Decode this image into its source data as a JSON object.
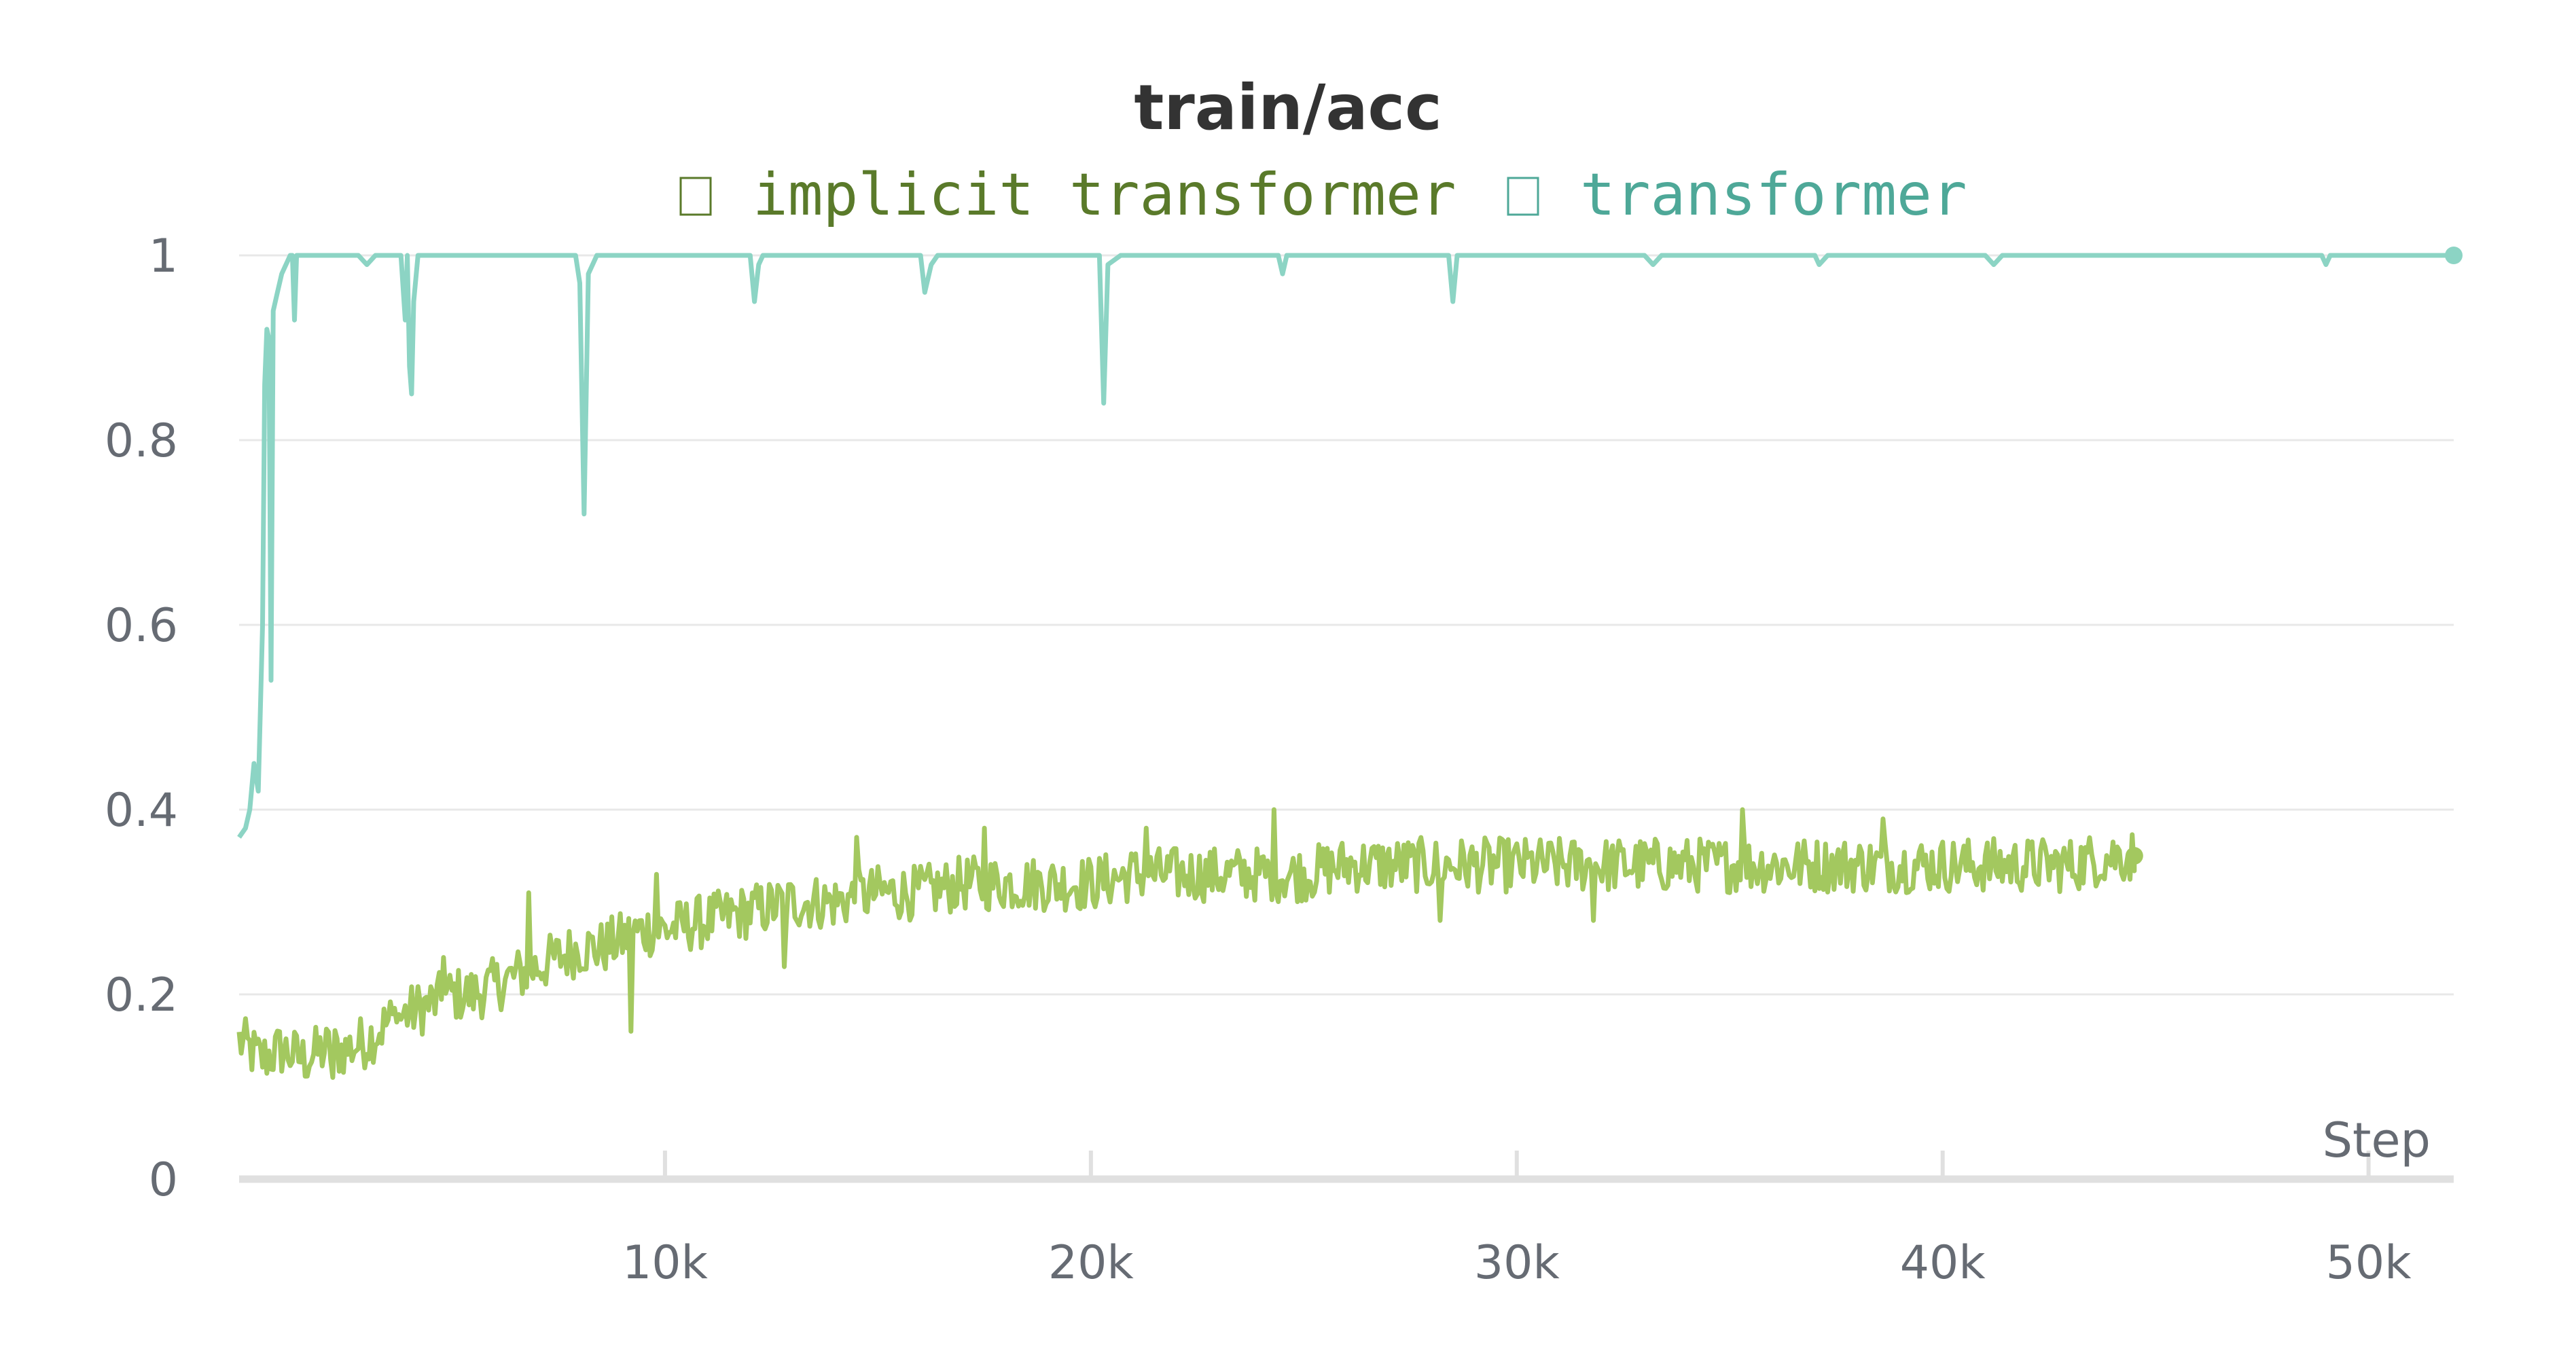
{
  "chart_data": {
    "type": "line",
    "title": "train/acc",
    "xlabel": "Step",
    "ylabel": "",
    "xlim": [
      0,
      52000
    ],
    "ylim": [
      0,
      1
    ],
    "x_ticks": [
      10000,
      20000,
      30000,
      40000,
      50000
    ],
    "x_tick_labels": [
      "10k",
      "20k",
      "30k",
      "40k",
      "50k"
    ],
    "y_ticks": [
      0,
      0.2,
      0.4,
      0.6,
      0.8,
      1
    ],
    "y_tick_labels": [
      "0",
      "0.2",
      "0.4",
      "0.6",
      "0.8",
      "1"
    ],
    "grid": true,
    "legend_position": "top-center",
    "series": [
      {
        "name": "implicit transformer",
        "color": "#a3c85f",
        "legend_color": "#5a7a2a",
        "points": [
          [
            0,
            0.15
          ],
          [
            500,
            0.13
          ],
          [
            1000,
            0.14
          ],
          [
            1500,
            0.13
          ],
          [
            2000,
            0.14
          ],
          [
            2500,
            0.14
          ],
          [
            3000,
            0.15
          ],
          [
            3500,
            0.17
          ],
          [
            4000,
            0.18
          ],
          [
            4500,
            0.19
          ],
          [
            5000,
            0.2
          ],
          [
            5500,
            0.2
          ],
          [
            6000,
            0.21
          ],
          [
            6500,
            0.22
          ],
          [
            7000,
            0.23
          ],
          [
            7500,
            0.24
          ],
          [
            8000,
            0.25
          ],
          [
            8500,
            0.25
          ],
          [
            9000,
            0.26
          ],
          [
            9500,
            0.27
          ],
          [
            10000,
            0.27
          ],
          [
            11000,
            0.28
          ],
          [
            12000,
            0.29
          ],
          [
            13000,
            0.3
          ],
          [
            14000,
            0.3
          ],
          [
            15000,
            0.31
          ],
          [
            16000,
            0.31
          ],
          [
            17000,
            0.32
          ],
          [
            18000,
            0.32
          ],
          [
            19000,
            0.32
          ],
          [
            20000,
            0.32
          ],
          [
            21000,
            0.33
          ],
          [
            22000,
            0.33
          ],
          [
            23000,
            0.33
          ],
          [
            24000,
            0.33
          ],
          [
            25000,
            0.33
          ],
          [
            26000,
            0.34
          ],
          [
            27000,
            0.34
          ],
          [
            28000,
            0.34
          ],
          [
            29000,
            0.34
          ],
          [
            30000,
            0.34
          ],
          [
            31000,
            0.34
          ],
          [
            32000,
            0.34
          ],
          [
            33000,
            0.34
          ],
          [
            34000,
            0.34
          ],
          [
            35000,
            0.34
          ],
          [
            36000,
            0.34
          ],
          [
            37000,
            0.34
          ],
          [
            38000,
            0.34
          ],
          [
            39000,
            0.34
          ],
          [
            40000,
            0.34
          ],
          [
            41000,
            0.34
          ],
          [
            42000,
            0.34
          ],
          [
            43000,
            0.34
          ],
          [
            44000,
            0.35
          ],
          [
            44500,
            0.35
          ]
        ],
        "noise_amplitude": 0.03,
        "dips": [
          [
            2200,
            0.11
          ],
          [
            3700,
            0.17
          ],
          [
            4800,
            0.24
          ],
          [
            6800,
            0.31
          ],
          [
            9200,
            0.16
          ],
          [
            9800,
            0.33
          ],
          [
            12800,
            0.23
          ],
          [
            14500,
            0.37
          ],
          [
            17500,
            0.38
          ],
          [
            21300,
            0.38
          ],
          [
            24300,
            0.4
          ],
          [
            28200,
            0.28
          ],
          [
            31800,
            0.28
          ],
          [
            35300,
            0.4
          ],
          [
            38600,
            0.39
          ]
        ],
        "endpoint": [
          44500,
          0.35
        ]
      },
      {
        "name": "transformer",
        "color": "#8cd4c4",
        "legend_color": "#4ea898",
        "points": [
          [
            0,
            0.37
          ],
          [
            150,
            0.38
          ],
          [
            250,
            0.4
          ],
          [
            350,
            0.45
          ],
          [
            450,
            0.42
          ],
          [
            550,
            0.6
          ],
          [
            600,
            0.86
          ],
          [
            650,
            0.92
          ],
          [
            700,
            0.91
          ],
          [
            750,
            0.54
          ],
          [
            800,
            0.94
          ],
          [
            900,
            0.96
          ],
          [
            1000,
            0.98
          ],
          [
            1200,
            1.0
          ],
          [
            1250,
            1.0
          ],
          [
            1300,
            0.93
          ],
          [
            1350,
            1.0
          ],
          [
            2000,
            1.0
          ],
          [
            2800,
            1.0
          ],
          [
            3000,
            0.99
          ],
          [
            3200,
            1.0
          ],
          [
            3800,
            1.0
          ],
          [
            3900,
            0.93
          ],
          [
            3950,
            1.0
          ],
          [
            4000,
            0.88
          ],
          [
            4050,
            0.85
          ],
          [
            4100,
            0.95
          ],
          [
            4200,
            1.0
          ],
          [
            7900,
            1.0
          ],
          [
            8000,
            0.97
          ],
          [
            8100,
            0.72
          ],
          [
            8200,
            0.98
          ],
          [
            8400,
            1.0
          ],
          [
            12000,
            1.0
          ],
          [
            12100,
            0.95
          ],
          [
            12200,
            0.99
          ],
          [
            12300,
            1.0
          ],
          [
            16000,
            1.0
          ],
          [
            16100,
            0.96
          ],
          [
            16250,
            0.99
          ],
          [
            16400,
            1.0
          ],
          [
            20200,
            1.0
          ],
          [
            20300,
            0.84
          ],
          [
            20400,
            0.99
          ],
          [
            20700,
            1.0
          ],
          [
            24400,
            1.0
          ],
          [
            24500,
            0.98
          ],
          [
            24600,
            1.0
          ],
          [
            28400,
            1.0
          ],
          [
            28500,
            0.95
          ],
          [
            28600,
            1.0
          ],
          [
            33000,
            1.0
          ],
          [
            33200,
            0.99
          ],
          [
            33400,
            1.0
          ],
          [
            37000,
            1.0
          ],
          [
            37100,
            0.99
          ],
          [
            37300,
            1.0
          ],
          [
            41000,
            1.0
          ],
          [
            41200,
            0.99
          ],
          [
            41400,
            1.0
          ],
          [
            48900,
            1.0
          ],
          [
            49000,
            0.99
          ],
          [
            49100,
            1.0
          ],
          [
            52000,
            1.0
          ]
        ],
        "endpoint": [
          52000,
          1.0
        ]
      }
    ]
  }
}
